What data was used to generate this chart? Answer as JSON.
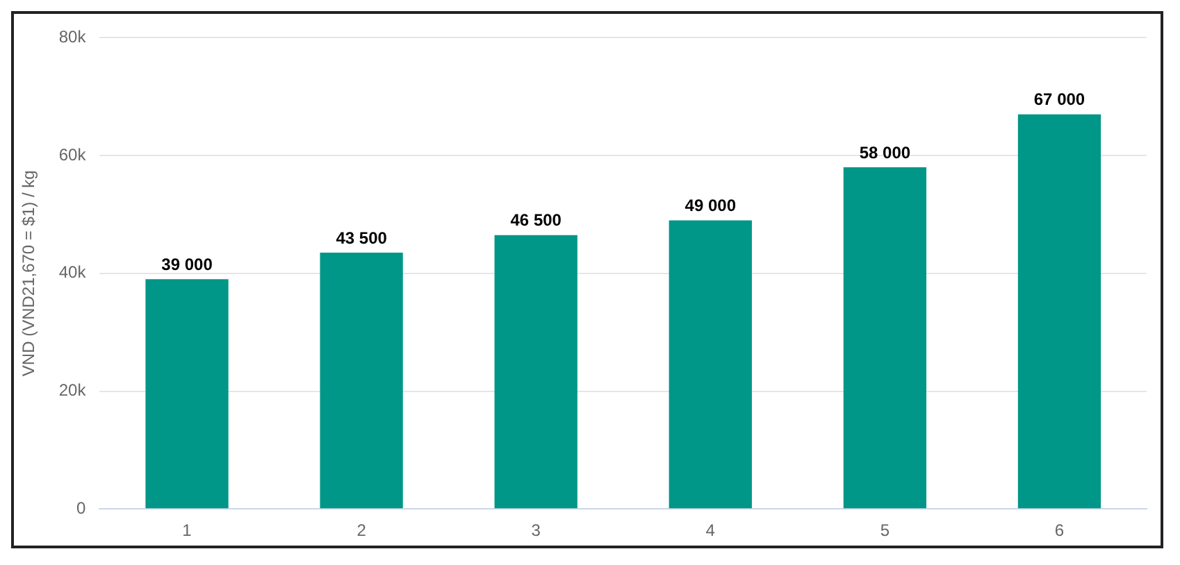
{
  "chart_data": {
    "type": "bar",
    "ylabel": "VND (VND21,670 = $1) / kg",
    "categories": [
      "1",
      "2",
      "3",
      "4",
      "5",
      "6"
    ],
    "values": [
      39000,
      43500,
      46500,
      49000,
      58000,
      67000
    ],
    "color": "#009688",
    "value_labels": [
      "39 000",
      "43 500",
      "46 500",
      "49 000",
      "58 000",
      "67 000"
    ],
    "ylim": [
      0,
      80000
    ],
    "yticks": [
      {
        "value": 0,
        "label": "0"
      },
      {
        "value": 20000,
        "label": "20k"
      },
      {
        "value": 40000,
        "label": "40k"
      },
      {
        "value": 60000,
        "label": "60k"
      },
      {
        "value": 80000,
        "label": "80k"
      }
    ],
    "grid": "y",
    "legend": false
  }
}
